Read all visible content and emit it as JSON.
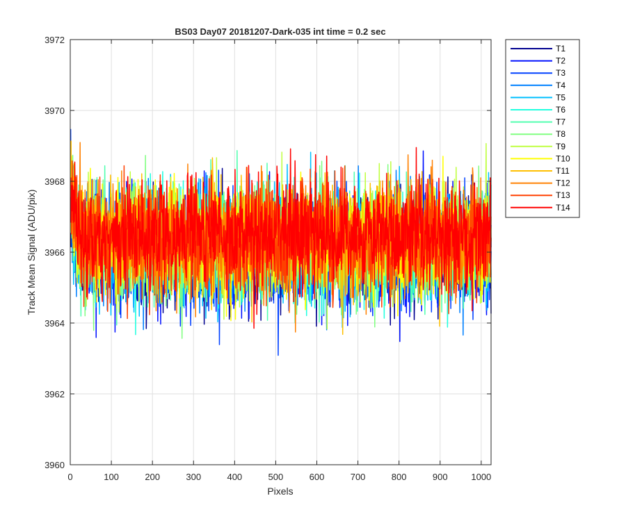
{
  "chart_data": {
    "type": "line",
    "title": "BS03 Day07 20181207-Dark-035 int time = 0.2 sec",
    "xlabel": "Pixels",
    "ylabel": "Track Mean Signal (ADU/pix)",
    "xlim": [
      0,
      1024
    ],
    "ylim": [
      3960,
      3972
    ],
    "xticks": [
      0,
      100,
      200,
      300,
      400,
      500,
      600,
      700,
      800,
      900,
      1000
    ],
    "yticks": [
      3960,
      3962,
      3964,
      3966,
      3968,
      3970,
      3972
    ],
    "grid": true,
    "legend_position": "outside-top-right",
    "series": [
      {
        "name": "T1",
        "color": "#00008f",
        "mean": 3966.0,
        "noise": 0.75
      },
      {
        "name": "T2",
        "color": "#0010ff",
        "mean": 3966.0,
        "noise": 0.75
      },
      {
        "name": "T3",
        "color": "#0040ff",
        "mean": 3966.1,
        "noise": 0.75
      },
      {
        "name": "T4",
        "color": "#0080ff",
        "mean": 3966.1,
        "noise": 0.75
      },
      {
        "name": "T5",
        "color": "#00bfff",
        "mean": 3966.1,
        "noise": 0.75
      },
      {
        "name": "T6",
        "color": "#20ffdf",
        "mean": 3966.2,
        "noise": 0.75
      },
      {
        "name": "T7",
        "color": "#50ffaf",
        "mean": 3966.2,
        "noise": 0.75
      },
      {
        "name": "T8",
        "color": "#80ff80",
        "mean": 3966.3,
        "noise": 0.75
      },
      {
        "name": "T9",
        "color": "#bfff40",
        "mean": 3966.3,
        "noise": 0.75
      },
      {
        "name": "T10",
        "color": "#ffff00",
        "mean": 3966.3,
        "noise": 0.75
      },
      {
        "name": "T11",
        "color": "#ffbf00",
        "mean": 3966.4,
        "noise": 0.75
      },
      {
        "name": "T12",
        "color": "#ff8000",
        "mean": 3966.4,
        "noise": 0.75
      },
      {
        "name": "T13",
        "color": "#ff4000",
        "mean": 3966.4,
        "noise": 0.75
      },
      {
        "name": "T14",
        "color": "#ff0000",
        "mean": 3966.5,
        "noise": 0.75
      }
    ]
  }
}
